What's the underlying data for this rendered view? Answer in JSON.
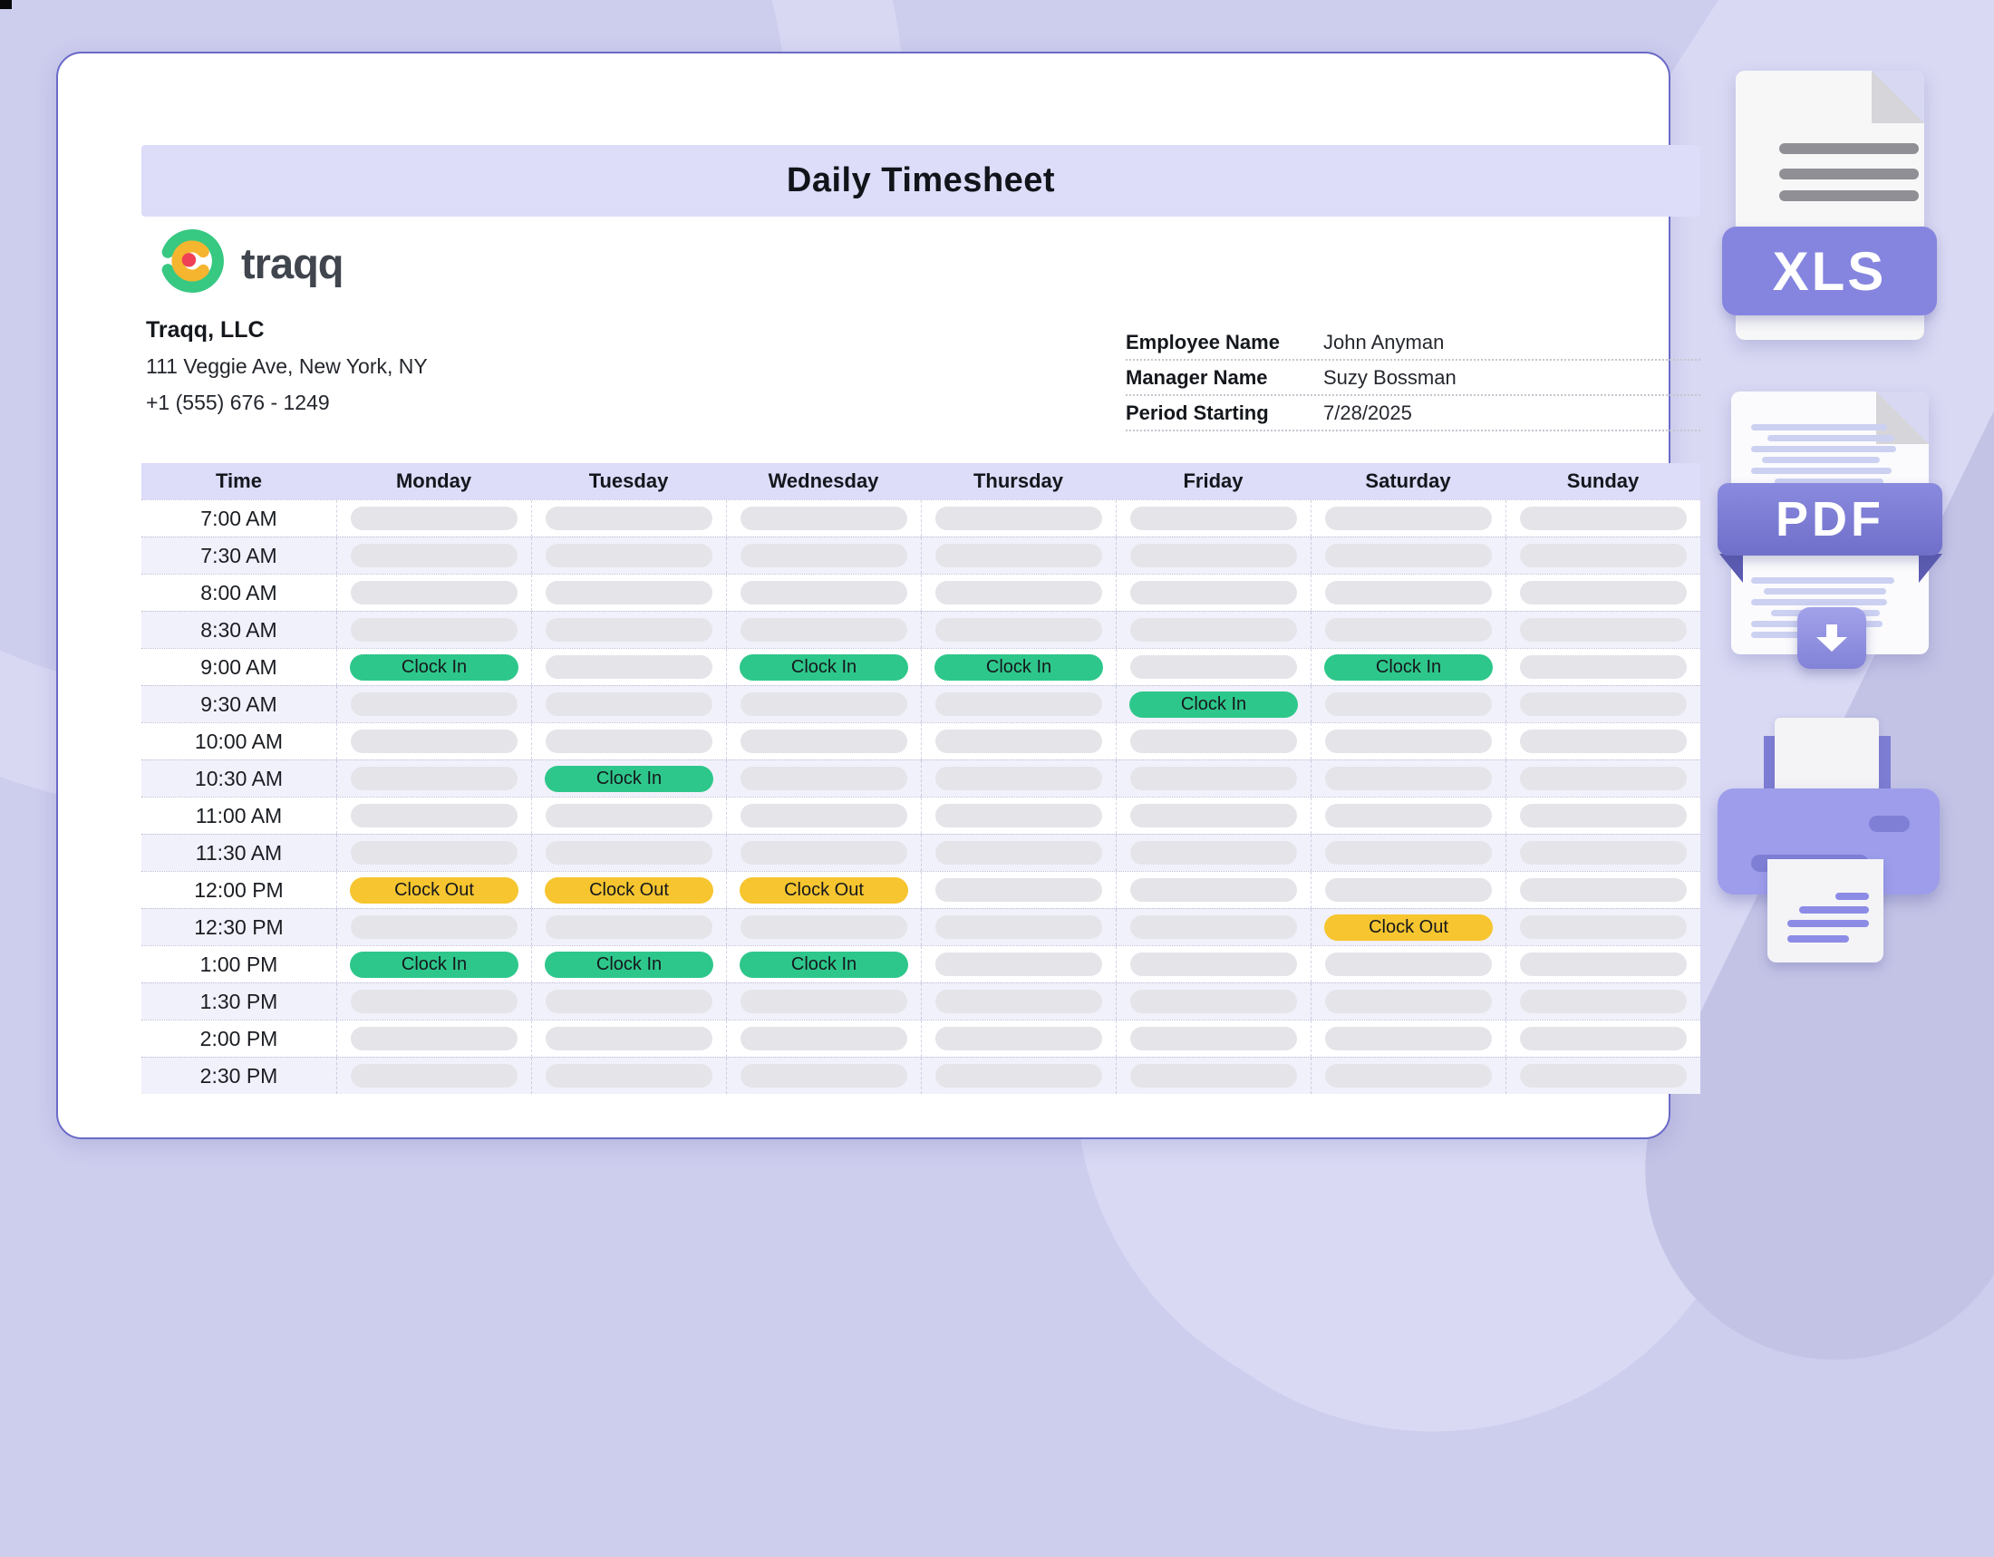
{
  "page": {
    "title_banner": "Daily Timesheet"
  },
  "logo": {
    "text": "traqq"
  },
  "company": {
    "name": "Traqq, LLC",
    "address": "111 Veggie Ave, New York, NY",
    "phone": "+1 (555) 676 - 1249"
  },
  "employee_info": [
    {
      "label": "Employee Name",
      "value": "John Anyman"
    },
    {
      "label": "Manager Name",
      "value": "Suzy Bossman"
    },
    {
      "label": "Period Starting",
      "value": "7/28/2025"
    }
  ],
  "timesheet": {
    "columns": [
      "Time",
      "Monday",
      "Tuesday",
      "Wednesday",
      "Thursday",
      "Friday",
      "Saturday",
      "Sunday"
    ],
    "clock_in_label": "Clock In",
    "clock_out_label": "Clock Out",
    "rows": [
      {
        "time": "7:00 AM",
        "cells": [
          null,
          null,
          null,
          null,
          null,
          null,
          null
        ]
      },
      {
        "time": "7:30 AM",
        "cells": [
          null,
          null,
          null,
          null,
          null,
          null,
          null
        ]
      },
      {
        "time": "8:00 AM",
        "cells": [
          null,
          null,
          null,
          null,
          null,
          null,
          null
        ]
      },
      {
        "time": "8:30 AM",
        "cells": [
          null,
          null,
          null,
          null,
          null,
          null,
          null
        ]
      },
      {
        "time": "9:00 AM",
        "cells": [
          "in",
          null,
          "in",
          "in",
          null,
          "in",
          null
        ]
      },
      {
        "time": "9:30 AM",
        "cells": [
          null,
          null,
          null,
          null,
          "in",
          null,
          null
        ]
      },
      {
        "time": "10:00 AM",
        "cells": [
          null,
          null,
          null,
          null,
          null,
          null,
          null
        ]
      },
      {
        "time": "10:30 AM",
        "cells": [
          null,
          "in",
          null,
          null,
          null,
          null,
          null
        ]
      },
      {
        "time": "11:00 AM",
        "cells": [
          null,
          null,
          null,
          null,
          null,
          null,
          null
        ]
      },
      {
        "time": "11:30 AM",
        "cells": [
          null,
          null,
          null,
          null,
          null,
          null,
          null
        ]
      },
      {
        "time": "12:00 PM",
        "cells": [
          "out",
          "out",
          "out",
          null,
          null,
          null,
          null
        ]
      },
      {
        "time": "12:30 PM",
        "cells": [
          null,
          null,
          null,
          null,
          null,
          "out",
          null
        ]
      },
      {
        "time": "1:00 PM",
        "cells": [
          "in",
          "in",
          "in",
          null,
          null,
          null,
          null
        ]
      },
      {
        "time": "1:30 PM",
        "cells": [
          null,
          null,
          null,
          null,
          null,
          null,
          null
        ]
      },
      {
        "time": "2:00 PM",
        "cells": [
          null,
          null,
          null,
          null,
          null,
          null,
          null
        ]
      },
      {
        "time": "2:30 PM",
        "cells": [
          null,
          null,
          null,
          null,
          null,
          null,
          null
        ]
      }
    ]
  },
  "export_icons": {
    "xls_label": "XLS",
    "pdf_label": "PDF"
  },
  "colors": {
    "clock_in": "#2ec78b",
    "clock_out": "#f6c52f",
    "banner": "#dddcf9",
    "accent_purple": "#8585e0",
    "card_border": "#6a6ac8"
  }
}
